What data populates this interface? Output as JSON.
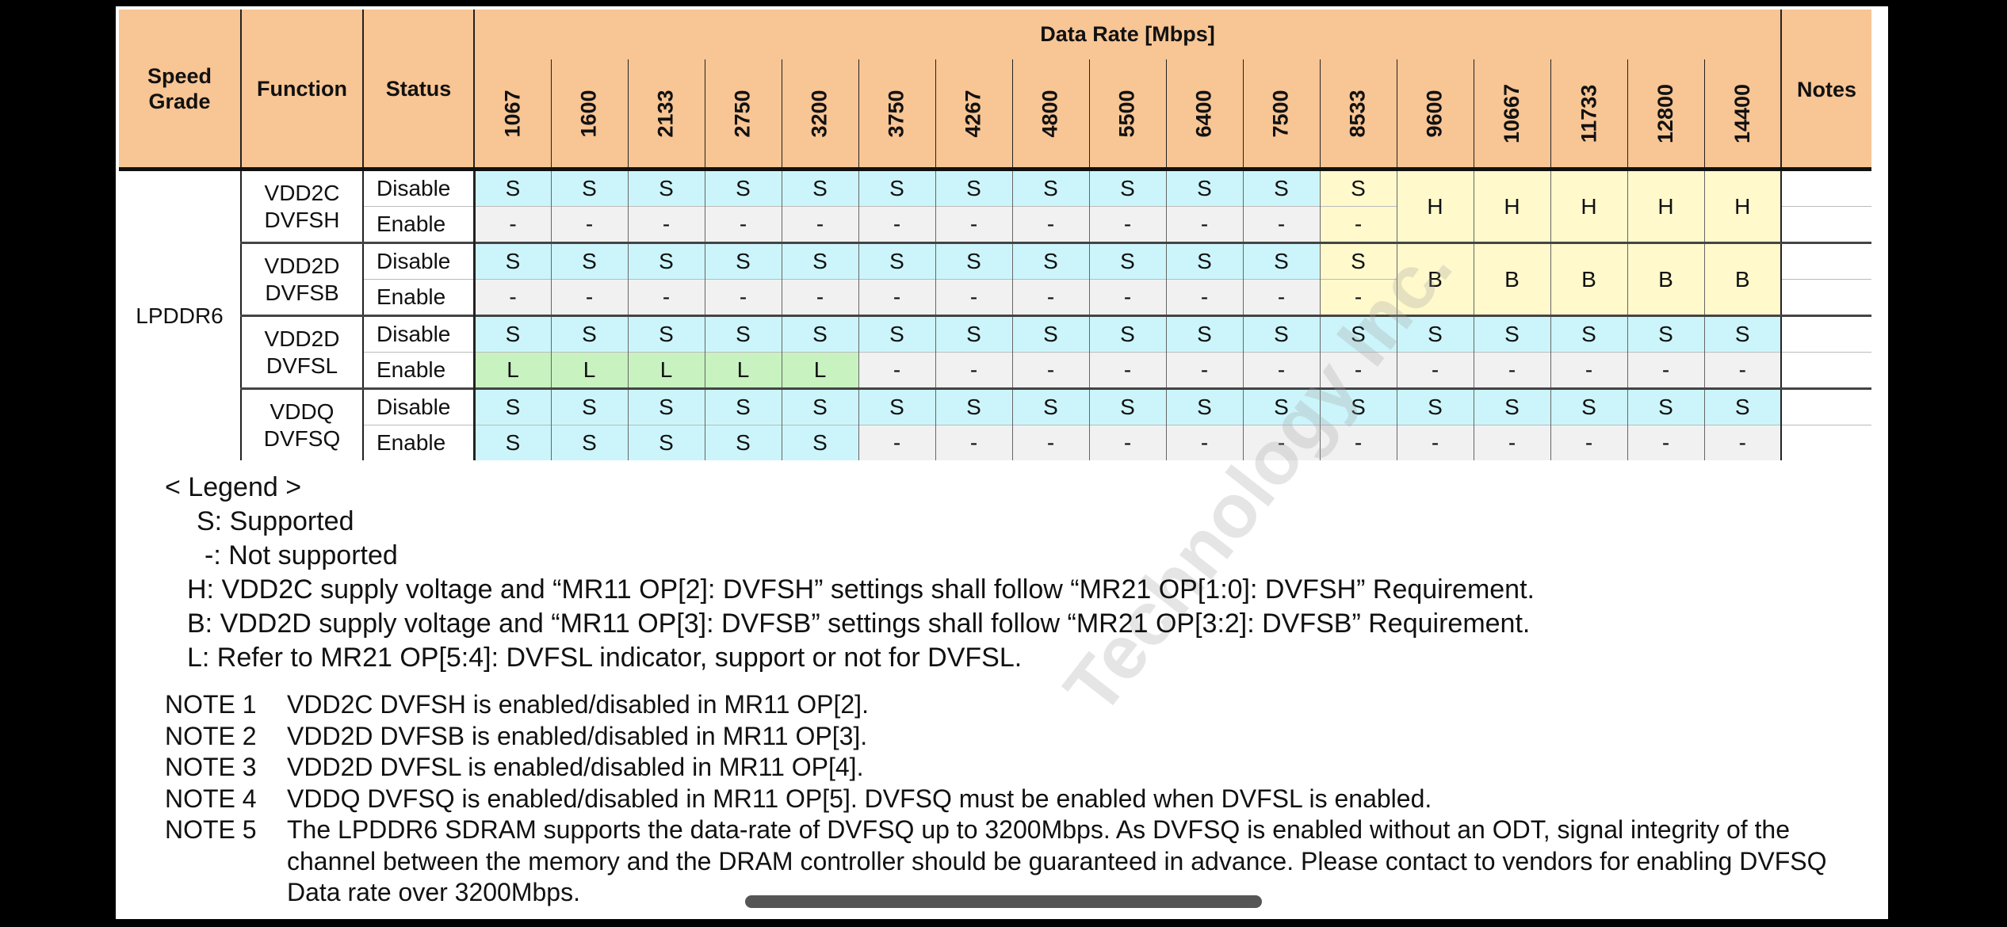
{
  "table": {
    "header": {
      "speed_grade": "Speed Grade",
      "function": "Function",
      "status": "Status",
      "data_rate": "Data Rate [Mbps]",
      "notes": "Notes",
      "rates": [
        "1067",
        "1600",
        "2133",
        "2750",
        "3200",
        "3750",
        "4267",
        "4800",
        "5500",
        "6400",
        "7500",
        "8533",
        "9600",
        "10667",
        "11733",
        "12800",
        "14400"
      ]
    },
    "speed_grade_value": "LPDDR6",
    "groups": [
      {
        "function": [
          "VDD2C",
          "DVFSH"
        ],
        "rows": [
          {
            "status": "Disable",
            "cells": [
              "S",
              "S",
              "S",
              "S",
              "S",
              "S",
              "S",
              "S",
              "S",
              "S",
              "S",
              "S"
            ],
            "span": "H"
          },
          {
            "status": "Enable",
            "cells": [
              "-",
              "-",
              "-",
              "-",
              "-",
              "-",
              "-",
              "-",
              "-",
              "-",
              "-",
              "-"
            ]
          }
        ]
      },
      {
        "function": [
          "VDD2D",
          "DVFSB"
        ],
        "rows": [
          {
            "status": "Disable",
            "cells": [
              "S",
              "S",
              "S",
              "S",
              "S",
              "S",
              "S",
              "S",
              "S",
              "S",
              "S",
              "S"
            ],
            "span": "B"
          },
          {
            "status": "Enable",
            "cells": [
              "-",
              "-",
              "-",
              "-",
              "-",
              "-",
              "-",
              "-",
              "-",
              "-",
              "-",
              "-"
            ]
          }
        ]
      },
      {
        "function": [
          "VDD2D",
          "DVFSL"
        ],
        "rows": [
          {
            "status": "Disable",
            "cells": [
              "S",
              "S",
              "S",
              "S",
              "S",
              "S",
              "S",
              "S",
              "S",
              "S",
              "S",
              "S",
              "S",
              "S",
              "S",
              "S",
              "S"
            ]
          },
          {
            "status": "Enable",
            "cells": [
              "L",
              "L",
              "L",
              "L",
              "L",
              "-",
              "-",
              "-",
              "-",
              "-",
              "-",
              "-",
              "-",
              "-",
              "-",
              "-",
              "-"
            ]
          }
        ]
      },
      {
        "function": [
          "VDDQ",
          "DVFSQ"
        ],
        "rows": [
          {
            "status": "Disable",
            "cells": [
              "S",
              "S",
              "S",
              "S",
              "S",
              "S",
              "S",
              "S",
              "S",
              "S",
              "S",
              "S",
              "S",
              "S",
              "S",
              "S",
              "S"
            ]
          },
          {
            "status": "Enable",
            "cells": [
              "S",
              "S",
              "S",
              "S",
              "S",
              "-",
              "-",
              "-",
              "-",
              "-",
              "-",
              "-",
              "-",
              "-",
              "-",
              "-",
              "-"
            ]
          }
        ]
      }
    ]
  },
  "legend": {
    "title": "< Legend >",
    "items": [
      "S: Supported",
      "-: Not supported",
      "H: VDD2C supply voltage and “MR11 OP[2]: DVFSH” settings shall follow “MR21 OP[1:0]: DVFSH” Requirement.",
      "B: VDD2D supply voltage and “MR11 OP[3]: DVFSB” settings shall follow “MR21 OP[3:2]: DVFSB” Requirement.",
      "L: Refer to MR21 OP[5:4]: DVFSL indicator, support or not for DVFSL."
    ]
  },
  "notes": [
    {
      "label": "NOTE 1",
      "text": "VDD2C DVFSH is enabled/disabled in MR11 OP[2]."
    },
    {
      "label": "NOTE 2",
      "text": "VDD2D DVFSB is enabled/disabled in MR11 OP[3]."
    },
    {
      "label": "NOTE 3",
      "text": "VDD2D DVFSL is enabled/disabled in MR11 OP[4]."
    },
    {
      "label": "NOTE 4",
      "text": "VDDQ DVFSQ is enabled/disabled in MR11 OP[5]. DVFSQ must be enabled when DVFSL is enabled."
    },
    {
      "label": "NOTE 5",
      "text": "The LPDDR6 SDRAM supports the data-rate of DVFSQ up to 3200Mbps. As DVFSQ is enabled without an ODT, signal integrity of the channel between the memory and the DRAM controller should be guaranteed in advance. Please contact to vendors for enabling DVFSQ Data rate over 3200Mbps."
    }
  ],
  "watermark": "Technology Inc.",
  "colors": {
    "header": "#f8c594",
    "supported": "#ccf5fb",
    "not_supported": "#f1f1f1",
    "refer": "#c8f2c0",
    "requirement": "#fff9cc"
  }
}
